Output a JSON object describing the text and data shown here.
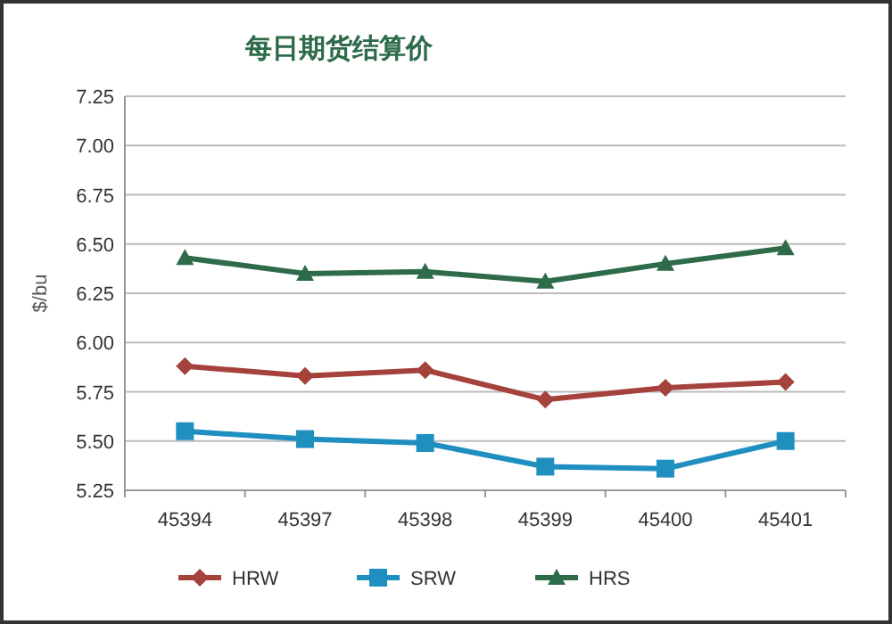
{
  "chart_data": {
    "type": "line",
    "title": "每日期货结算价",
    "ylabel": "$/bu",
    "categories": [
      "45394",
      "45397",
      "45398",
      "45399",
      "45400",
      "45401"
    ],
    "series": [
      {
        "name": "HRW",
        "color": "#a5423c",
        "marker": "diamond",
        "values": [
          5.88,
          5.83,
          5.86,
          5.71,
          5.77,
          5.8
        ]
      },
      {
        "name": "SRW",
        "color": "#1f8fc0",
        "marker": "square",
        "values": [
          5.55,
          5.51,
          5.49,
          5.37,
          5.36,
          5.5
        ]
      },
      {
        "name": "HRS",
        "color": "#2e6b4a",
        "marker": "triangle",
        "values": [
          6.43,
          6.35,
          6.36,
          6.31,
          6.4,
          6.48
        ]
      }
    ],
    "ylim": [
      5.25,
      7.25
    ],
    "yticks": [
      {
        "value": 5.25,
        "label": "5.25"
      },
      {
        "value": 5.5,
        "label": "5.50"
      },
      {
        "value": 5.75,
        "label": "5.75"
      },
      {
        "value": 6,
        "label": "6.00"
      },
      {
        "value": 6.25,
        "label": "6.25"
      },
      {
        "value": 6.5,
        "label": "6.50"
      },
      {
        "value": 6.75,
        "label": "6.75"
      },
      {
        "value": 7,
        "label": "7.00"
      },
      {
        "value": 7.25,
        "label": "7.25"
      }
    ],
    "grid": "y",
    "legend": "bottom",
    "line_style": "solid"
  }
}
